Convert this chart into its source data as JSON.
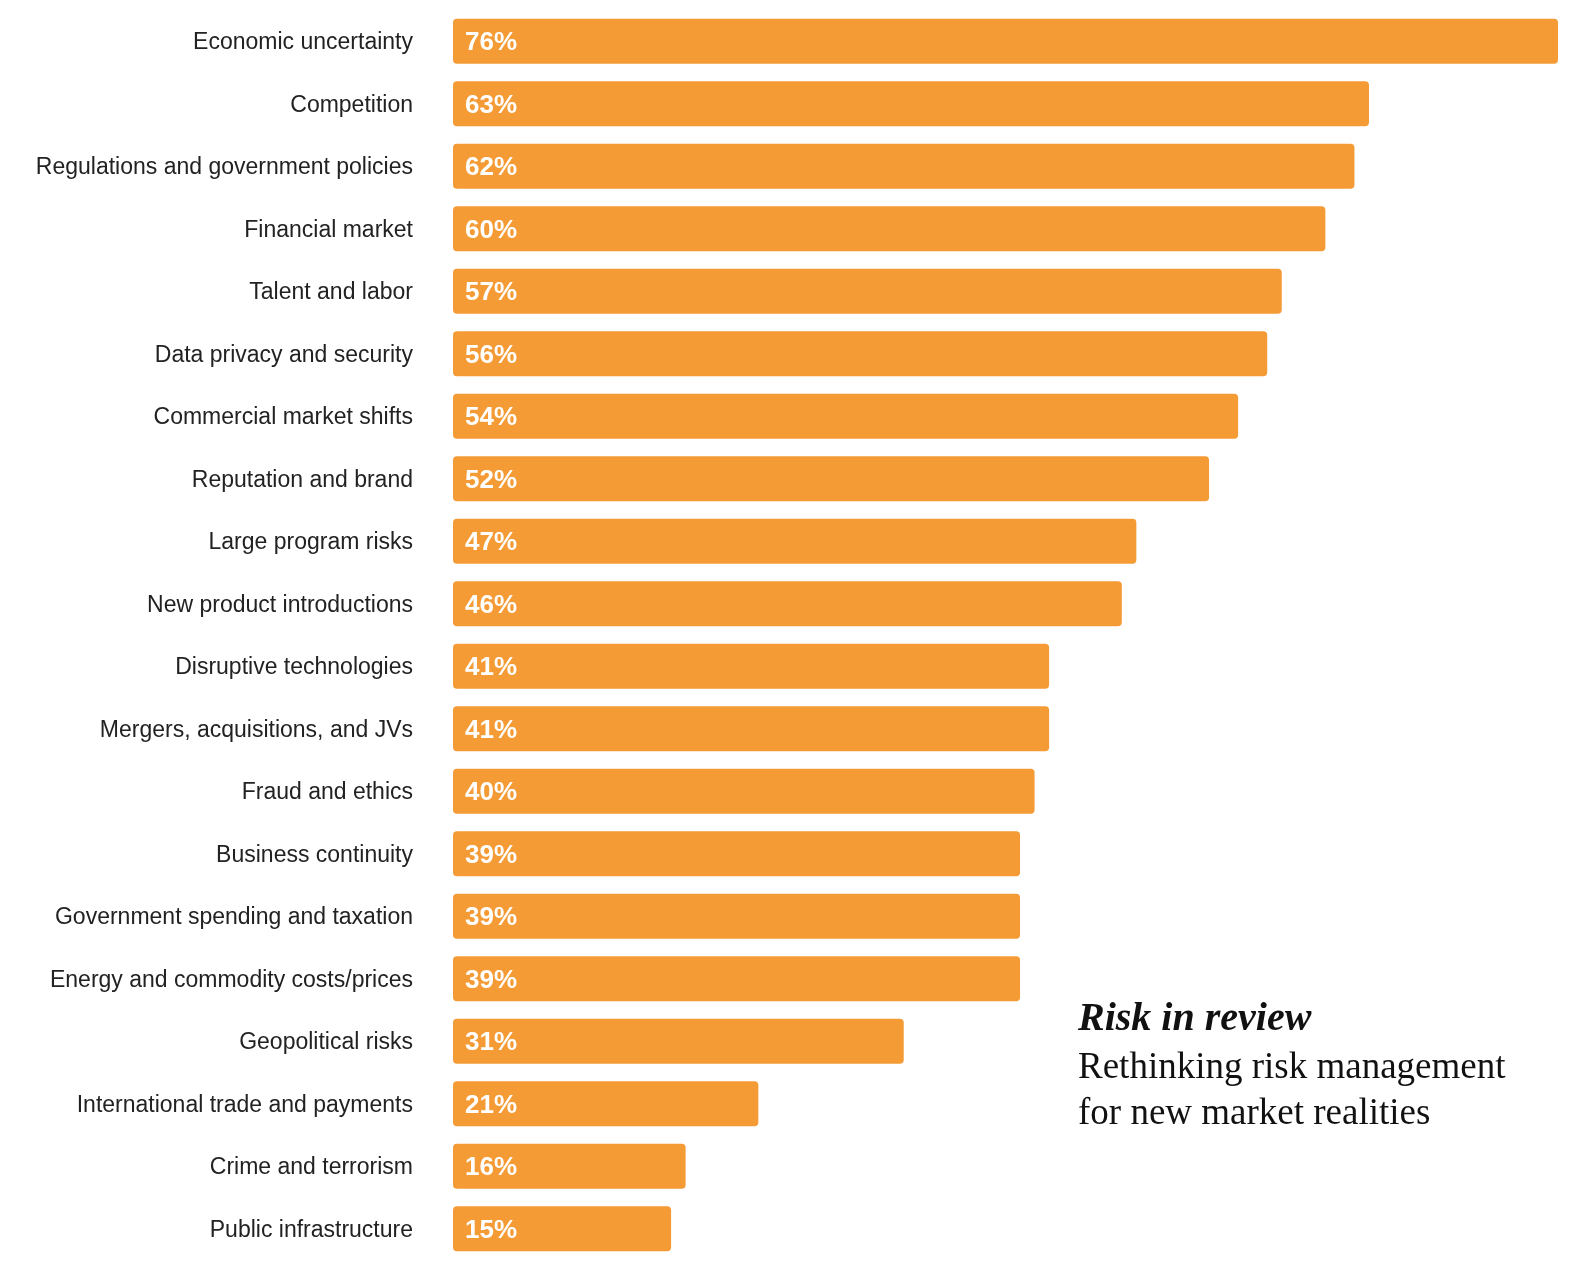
{
  "chart_data": {
    "type": "bar",
    "orientation": "horizontal",
    "categories": [
      "Economic uncertainty",
      "Competition",
      "Regulations and government policies",
      "Financial market",
      "Talent and labor",
      "Data privacy and security",
      "Commercial market shifts",
      "Reputation and brand",
      "Large program risks",
      "New product introductions",
      "Disruptive technologies",
      "Mergers, acquisitions, and JVs",
      "Fraud and ethics",
      "Business continuity",
      "Government spending and taxation",
      "Energy and commodity costs/prices",
      "Geopolitical risks",
      "International trade and payments",
      "Crime and terrorism",
      "Public infrastructure"
    ],
    "values": [
      76,
      63,
      62,
      60,
      57,
      56,
      54,
      52,
      47,
      46,
      41,
      41,
      40,
      39,
      39,
      39,
      31,
      21,
      16,
      15
    ],
    "value_labels": [
      "76%",
      "63%",
      "62%",
      "60%",
      "57%",
      "56%",
      "54%",
      "52%",
      "47%",
      "46%",
      "41%",
      "41%",
      "40%",
      "39%",
      "39%",
      "39%",
      "31%",
      "21%",
      "16%",
      "15%"
    ],
    "color": "#f59b35",
    "annotations": [
      "Risk in review",
      "Rethinking risk management for new market realities"
    ]
  }
}
